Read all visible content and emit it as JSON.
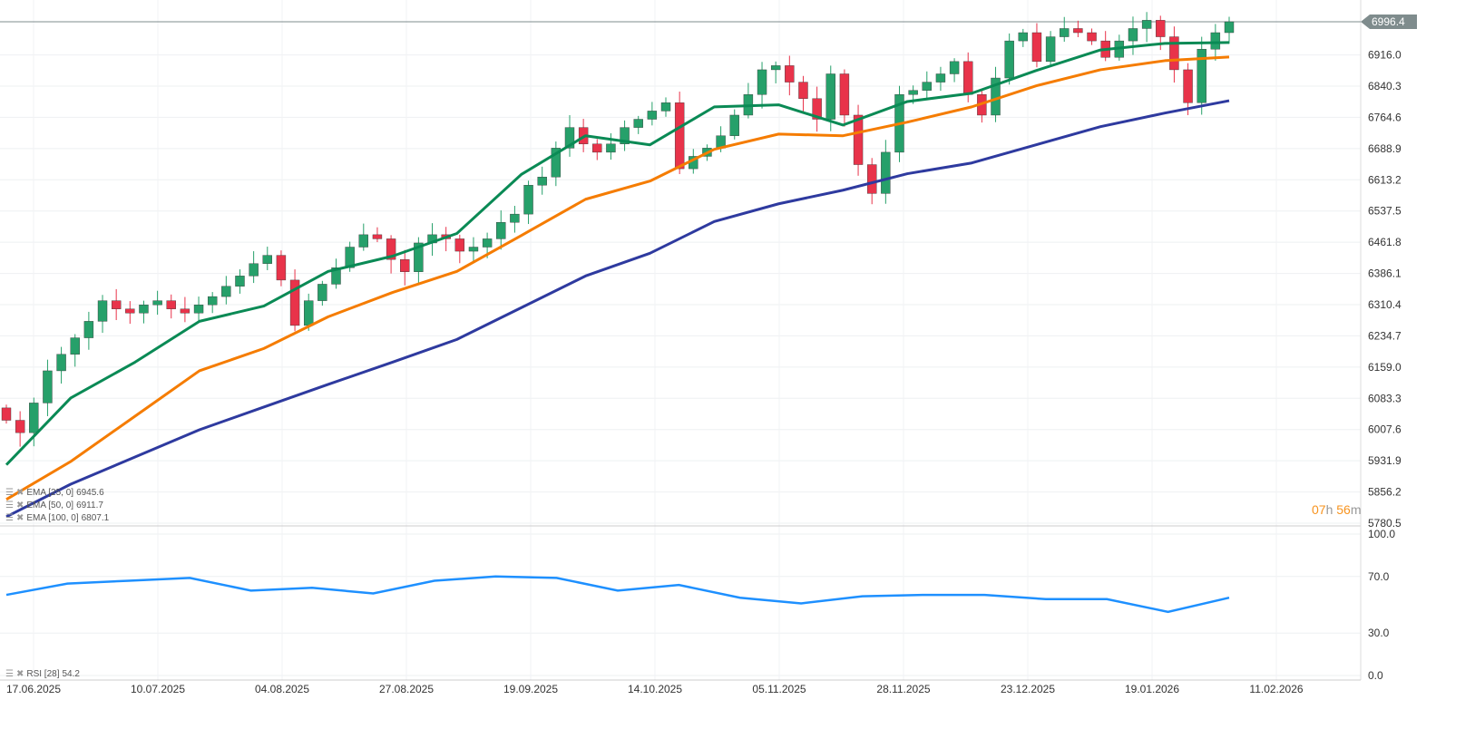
{
  "chart_data": [
    {
      "type": "candlestick",
      "y_ticks": [
        "6916.0",
        "6840.3",
        "6764.6",
        "6688.9",
        "6613.2",
        "6537.5",
        "6461.8",
        "6386.1",
        "6310.4",
        "6234.7",
        "6159.0",
        "6083.3",
        "6007.6",
        "5931.9",
        "5856.2",
        "5780.5"
      ],
      "ylim": [
        5780.5,
        6996.4
      ],
      "x_ticks": [
        "17.06.2025",
        "10.07.2025",
        "04.08.2025",
        "27.08.2025",
        "19.09.2025",
        "14.10.2025",
        "05.11.2025",
        "28.11.2025",
        "23.12.2025",
        "19.01.2026",
        "11.02.2026"
      ],
      "last_price": "6996.4",
      "closes": [
        6030,
        6000,
        6072,
        6150,
        6190,
        6230,
        6270,
        6320,
        6300,
        6290,
        6310,
        6320,
        6300,
        6290,
        6310,
        6330,
        6355,
        6380,
        6410,
        6430,
        6370,
        6260,
        6320,
        6360,
        6400,
        6450,
        6480,
        6470,
        6420,
        6390,
        6460,
        6480,
        6470,
        6440,
        6450,
        6470,
        6510,
        6530,
        6600,
        6620,
        6690,
        6740,
        6700,
        6680,
        6700,
        6740,
        6760,
        6780,
        6800,
        6640,
        6670,
        6690,
        6720,
        6770,
        6820,
        6880,
        6890,
        6850,
        6810,
        6760,
        6870,
        6770,
        6650,
        6580,
        6680,
        6820,
        6830,
        6850,
        6870,
        6900,
        6820,
        6770,
        6860,
        6950,
        6970,
        6900,
        6960,
        6980,
        6970,
        6950,
        6910,
        6950,
        6980,
        7000,
        6960,
        6880,
        6800,
        6930,
        6970,
        6996.4
      ],
      "series": [
        {
          "name": "EMA [25, 0]",
          "last": "6945.6",
          "color": "#0a8a55",
          "values": [
            5922,
            6084,
            6171,
            6270,
            6307,
            6391,
            6428,
            6483,
            6626,
            6720,
            6698,
            6790,
            6795,
            6746,
            6803,
            6823,
            6878,
            6928,
            6944,
            6946
          ]
        },
        {
          "name": "EMA [50, 0]",
          "last": "6911.7",
          "color": "#f57c00",
          "values": [
            5838,
            5930,
            6040,
            6150,
            6204,
            6281,
            6340,
            6391,
            6478,
            6566,
            6610,
            6687,
            6724,
            6720,
            6753,
            6790,
            6841,
            6880,
            6902,
            6911
          ]
        },
        {
          "name": "EMA [100, 0]",
          "last": "6807.1",
          "color": "#2e3a9f",
          "values": [
            5796,
            5875,
            5941,
            6007,
            6062,
            6117,
            6171,
            6226,
            6303,
            6380,
            6435,
            6512,
            6555,
            6588,
            6628,
            6654,
            6698,
            6742,
            6775,
            6805
          ]
        }
      ],
      "countdown": {
        "h": "07",
        "h_unit": "h",
        "m": "56",
        "m_unit": "m"
      }
    },
    {
      "type": "line",
      "name": "RSI [28]",
      "last": "54.2",
      "color": "#1e90ff",
      "y_ticks": [
        "100.0",
        "70.0",
        "30.0",
        "0.0"
      ],
      "ylim": [
        0,
        100
      ],
      "values": [
        57,
        65,
        67,
        69,
        60,
        62,
        58,
        67,
        70,
        69,
        60,
        64,
        55,
        51,
        56,
        57,
        57,
        54,
        54,
        45,
        55
      ]
    }
  ],
  "colors": {
    "up": "#26a06a",
    "down": "#e8334a"
  }
}
